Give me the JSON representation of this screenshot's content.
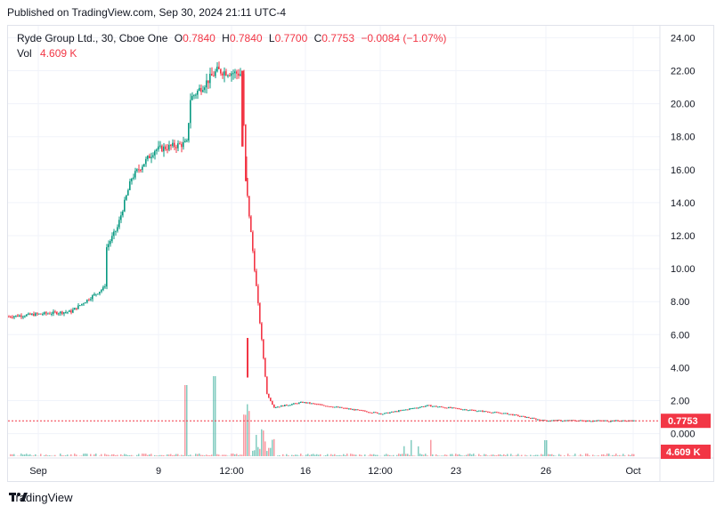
{
  "header": {
    "published": "Published on TradingView.com, Sep 30, 2024 21:11 UTC-4"
  },
  "legend": {
    "symbol": "Ryde Group Ltd., 30, Cboe One",
    "o_label": "O",
    "o_value": "0.7840",
    "h_label": "H",
    "h_value": "0.7840",
    "l_label": "L",
    "l_value": "0.7700",
    "c_label": "C",
    "c_value": "0.7753",
    "change": "−0.0084 (−1.07%)",
    "vol_label": "Vol",
    "vol_value": "4.609 K"
  },
  "price_axis": {
    "ticks": [
      "24.00",
      "22.00",
      "20.00",
      "18.00",
      "16.00",
      "14.00",
      "12.00",
      "10.00",
      "8.00",
      "6.00",
      "4.00",
      "2.00",
      "0.000"
    ],
    "last_price_label": "0.7753",
    "last_volume_label": "4.609 K"
  },
  "time_axis": {
    "ticks": [
      "Sep",
      "9",
      "12:00",
      "16",
      "12:00",
      "23",
      "26",
      "Oct"
    ]
  },
  "colors": {
    "up": "#089981",
    "down": "#f23645",
    "grid": "#f0f3fa",
    "price_line": "#f23645"
  },
  "footer": {
    "brand": "TradingView",
    "logo_icon": "tradingview-logo-icon"
  },
  "chart_data": {
    "type": "candlestick",
    "price_range": [
      0,
      24
    ],
    "price_path": [
      {
        "t": "Sep 2",
        "close": 7.1
      },
      {
        "t": "Sep 3",
        "close": 7.4
      },
      {
        "t": "Sep 4",
        "close": 8.8
      },
      {
        "t": "Sep 5",
        "close": 9.0
      },
      {
        "t": "Sep 5",
        "close": 11.3
      },
      {
        "t": "Sep 6",
        "close": 12.5
      },
      {
        "t": "Sep 6",
        "close": 15.5
      },
      {
        "t": "Sep 8",
        "close": 17.2
      },
      {
        "t": "Sep 9",
        "close": 17.6
      },
      {
        "t": "Sep 10",
        "close": 20.3
      },
      {
        "t": "Sep 11",
        "close": 22.0
      },
      {
        "t": "Sep 12",
        "close": 21.8
      },
      {
        "t": "Sep 12",
        "close": 15.4
      },
      {
        "t": "Sep 13",
        "close": 2.4
      },
      {
        "t": "Sep 14",
        "close": 1.6
      },
      {
        "t": "Sep 16",
        "close": 1.9
      },
      {
        "t": "Sep 19",
        "close": 1.2
      },
      {
        "t": "Sep 20",
        "close": 1.7
      },
      {
        "t": "Sep 24",
        "close": 1.2
      },
      {
        "t": "Sep 26",
        "close": 0.8
      },
      {
        "t": "Sep 30",
        "close": 0.7753
      }
    ]
  }
}
